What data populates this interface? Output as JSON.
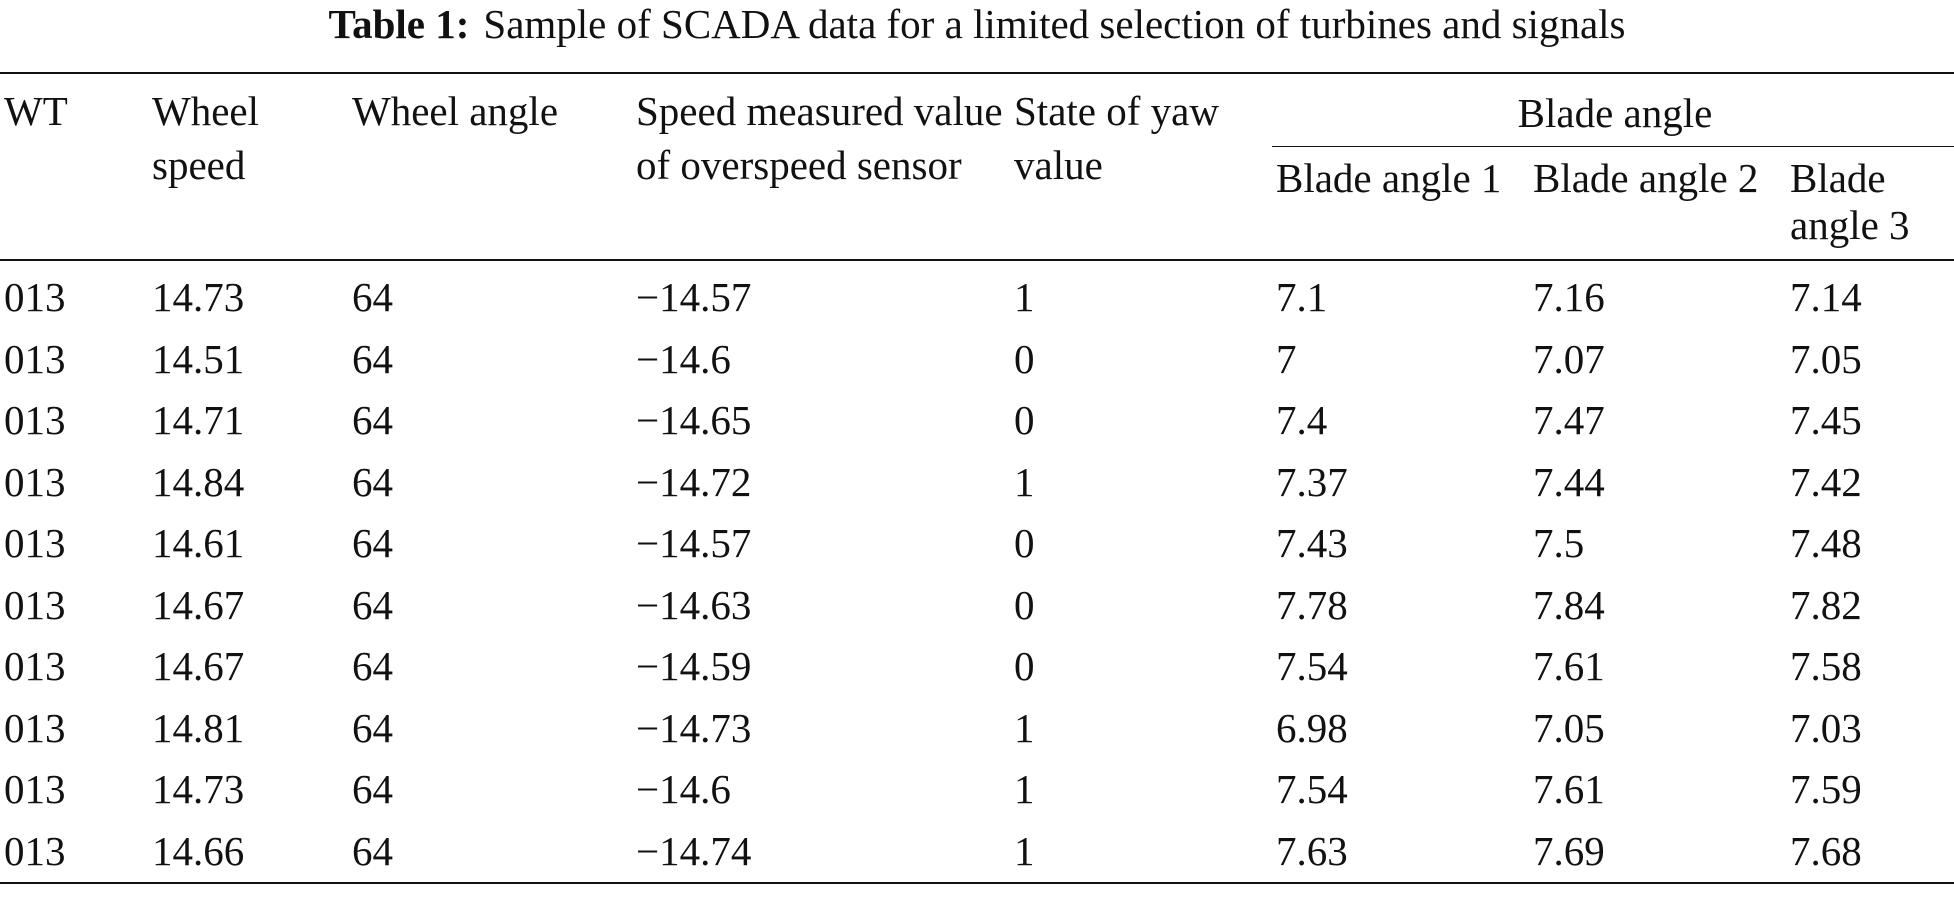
{
  "caption": {
    "label": "Table 1:",
    "text": "Sample of SCADA data for a limited selection of turbines and signals"
  },
  "table": {
    "headers": {
      "wt": "WT",
      "wheel_speed": "Wheel speed",
      "wheel_angle": "Wheel angle",
      "speed_measured": "Speed measured value of overspeed sensor",
      "yaw_state": "State of yaw value",
      "blade_group": "Blade angle",
      "blade1": "Blade angle 1",
      "blade2": "Blade angle 2",
      "blade3": "Blade angle 3"
    },
    "rows": [
      [
        "013",
        "14.73",
        "64",
        "−14.57",
        "1",
        "7.1",
        "7.16",
        "7.14"
      ],
      [
        "013",
        "14.51",
        "64",
        "−14.6",
        "0",
        "7",
        "7.07",
        "7.05"
      ],
      [
        "013",
        "14.71",
        "64",
        "−14.65",
        "0",
        "7.4",
        "7.47",
        "7.45"
      ],
      [
        "013",
        "14.84",
        "64",
        "−14.72",
        "1",
        "7.37",
        "7.44",
        "7.42"
      ],
      [
        "013",
        "14.61",
        "64",
        "−14.57",
        "0",
        "7.43",
        "7.5",
        "7.48"
      ],
      [
        "013",
        "14.67",
        "64",
        "−14.63",
        "0",
        "7.78",
        "7.84",
        "7.82"
      ],
      [
        "013",
        "14.67",
        "64",
        "−14.59",
        "0",
        "7.54",
        "7.61",
        "7.58"
      ],
      [
        "013",
        "14.81",
        "64",
        "−14.73",
        "1",
        "6.98",
        "7.05",
        "7.03"
      ],
      [
        "013",
        "14.73",
        "64",
        "−14.6",
        "1",
        "7.54",
        "7.61",
        "7.59"
      ],
      [
        "013",
        "14.66",
        "64",
        "−14.74",
        "1",
        "7.63",
        "7.69",
        "7.68"
      ]
    ]
  }
}
